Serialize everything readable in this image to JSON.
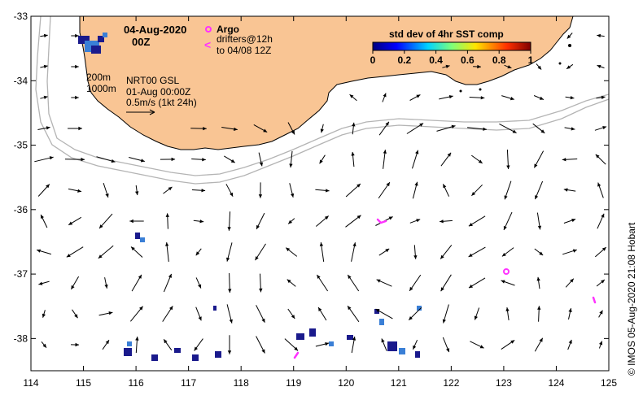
{
  "map": {
    "date": "04-Aug-2020",
    "hour": "00Z",
    "argo_label": "Argo",
    "drifters_line1": "drifters@12h",
    "drifters_line2": "to 04/08 12Z",
    "depth_200": "200m",
    "depth_1000": "1000m",
    "product": "NRT00 GSL",
    "product_date": "01-Aug 00:00Z",
    "speed_scale": "0.5m/s (1kt 24h)",
    "colorbar_title": "std dev of 4hr SST comp",
    "colorbar_ticks": [
      "0",
      "0.2",
      "0.4",
      "0.6",
      "0.8",
      "1"
    ],
    "credit": "© IMOS 05-Aug-2020 21:08 Hobart",
    "lon_ticks": [
      "114",
      "115",
      "116",
      "117",
      "118",
      "119",
      "120",
      "121",
      "122",
      "123",
      "124",
      "125"
    ],
    "lat_ticks": [
      "-33",
      "-34",
      "-35",
      "-36",
      "-37",
      "-38"
    ],
    "lon_range": [
      114,
      125
    ],
    "lat_range": [
      -38.5,
      -33
    ],
    "colors": {
      "land": "#f9c594",
      "ocean": "#ffffff",
      "argo": "#ff33ff",
      "drifter": "#ff33ff",
      "contour": "#b4b4b4",
      "sst_low": "#1a1a8c",
      "sst_mid": "#3a7fd6"
    }
  }
}
